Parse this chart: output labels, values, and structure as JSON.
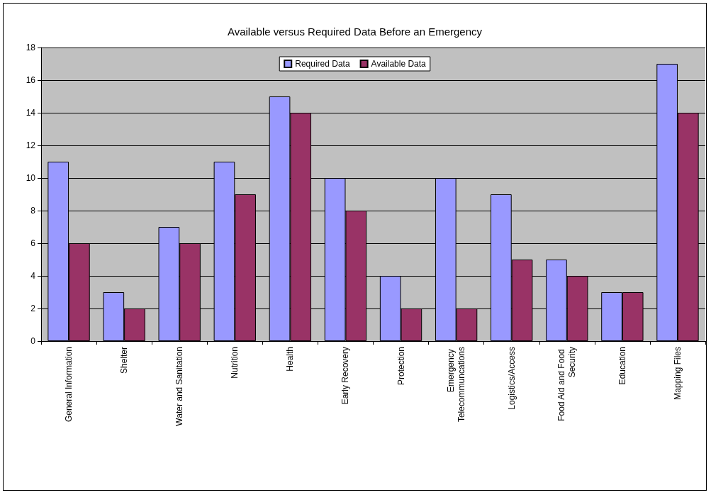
{
  "chart_data": {
    "type": "bar",
    "title": "Available versus Required Data Before an Emergency",
    "categories": [
      "General Information",
      "Shelter",
      "Water and Sanitation",
      "Nutrition",
      "Health",
      "Early Recovery",
      "Protection",
      "Emergency Telecommuncations",
      "Logistics/Access",
      "Food Aid and Food Security",
      "Education",
      "Mapping Files"
    ],
    "series": [
      {
        "name": "Required Data",
        "color": "#9999ff",
        "values": [
          11,
          3,
          7,
          11,
          15,
          10,
          4,
          10,
          9,
          5,
          3,
          17
        ]
      },
      {
        "name": "Available Data",
        "color": "#993366",
        "values": [
          6,
          2,
          6,
          9,
          14,
          8,
          2,
          2,
          5,
          4,
          3,
          14
        ]
      }
    ],
    "ylim": [
      0,
      18
    ],
    "yticks": [
      0,
      2,
      4,
      6,
      8,
      10,
      12,
      14,
      16,
      18
    ],
    "grid": "y",
    "legend": "top"
  }
}
